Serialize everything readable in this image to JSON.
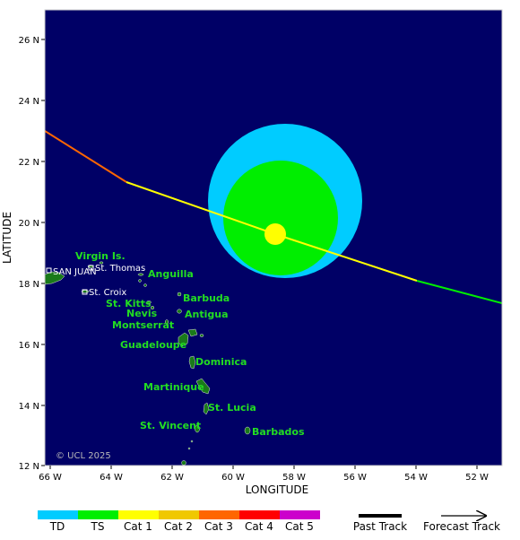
{
  "map": {
    "x_axis_title": "LONGITUDE",
    "y_axis_title": "LATITUDE",
    "x_ticks": [
      "66 W",
      "64 W",
      "62 W",
      "60 W",
      "58 W",
      "56 W",
      "54 W",
      "52 W"
    ],
    "y_ticks": [
      "26 N",
      "24 N",
      "22 N",
      "20 N",
      "18 N",
      "16 N",
      "14 N",
      "12 N"
    ],
    "copyright": "© UCL 2025",
    "ocean_color": "#000066",
    "land_color": "#1a7a1a"
  },
  "places": {
    "san_juan": "SAN JUAN",
    "st_thomas": "St. Thomas",
    "st_croix": "St. Croix"
  },
  "islands": {
    "virgin_is": "Virgin Is.",
    "anguilla": "Anguilla",
    "barbuda": "Barbuda",
    "st_kitts": "St. Kitts",
    "nevis": "Nevis",
    "antigua": "Antigua",
    "montserrat": "Montserrat",
    "guadeloupe": "Guadeloupe",
    "dominica": "Dominica",
    "martinique": "Martinique",
    "st_lucia": "St. Lucia",
    "st_vincent": "St. Vincent",
    "barbados": "Barbados"
  },
  "storm": {
    "current_position": {
      "lon": -58.6,
      "lat": 19.6
    },
    "track": [
      {
        "lon": -66.0,
        "lat": 23.0,
        "category": "Cat 2"
      },
      {
        "lon": -63.5,
        "lat": 21.3,
        "category": "Cat 1"
      },
      {
        "lon": -58.6,
        "lat": 19.6,
        "category": "Cat 1"
      },
      {
        "lon": -56.5,
        "lat": 18.8,
        "category": "Cat 1"
      },
      {
        "lon": -51.0,
        "lat": 17.3,
        "category": "TS"
      }
    ],
    "wind_fields": [
      {
        "name": "TD",
        "color": "#00ccff"
      },
      {
        "name": "TS",
        "color": "#00ee00"
      },
      {
        "name": "Cat 1",
        "color": "#ffff00"
      }
    ]
  },
  "legend": {
    "categories": [
      {
        "label": "TD",
        "color": "#00ccff"
      },
      {
        "label": "TS",
        "color": "#00ee00"
      },
      {
        "label": "Cat 1",
        "color": "#ffff00"
      },
      {
        "label": "Cat 2",
        "color": "#f0c800"
      },
      {
        "label": "Cat 3",
        "color": "#ff6600"
      },
      {
        "label": "Cat 4",
        "color": "#ff0000"
      },
      {
        "label": "Cat 5",
        "color": "#cc00cc"
      }
    ],
    "past_track_label": "Past Track",
    "forecast_track_label": "Forecast Track"
  }
}
